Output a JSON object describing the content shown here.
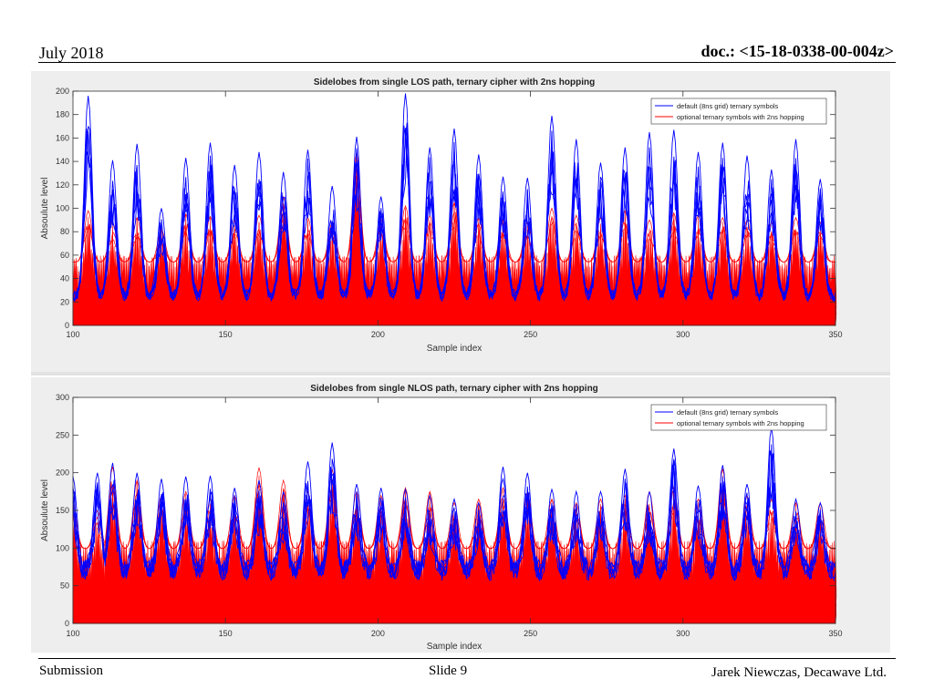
{
  "header": {
    "date": "July 2018",
    "doc": "doc.: <15-18-0338-00-004z>"
  },
  "footer": {
    "submission": "Submission",
    "slide": "Slide 9",
    "author": "Jarek Niewczas,  Decawave Ltd."
  },
  "colors": {
    "series_default": "#0000ff",
    "series_optional": "#ff0000",
    "panel_bg": "#eeeeee"
  },
  "chart_data": [
    {
      "type": "line",
      "title": "Sidelobes from single LOS path, ternary cipher with 2ns hopping",
      "xlabel": "Sample index",
      "ylabel": "Absoulute level",
      "xlim": [
        100,
        350
      ],
      "ylim": [
        0,
        200
      ],
      "xticks": [
        100,
        150,
        200,
        250,
        300,
        350
      ],
      "yticks": [
        0,
        20,
        40,
        60,
        80,
        100,
        120,
        140,
        160,
        180,
        200
      ],
      "grid": false,
      "legend_position": "top-right",
      "period": 8,
      "first_peak": 105,
      "series": [
        {
          "name": "default (8ns grid) ternary symbols",
          "color": "#0000ff",
          "peak_x": [
            105,
            113,
            121,
            129,
            137,
            145,
            153,
            161,
            169,
            177,
            185,
            193,
            201,
            209,
            217,
            225,
            233,
            241,
            249,
            257,
            265,
            273,
            281,
            289,
            297,
            305,
            313,
            321,
            329,
            337,
            345
          ],
          "peak_y": [
            196,
            141,
            155,
            100,
            143,
            156,
            137,
            148,
            131,
            150,
            119,
            161,
            110,
            198,
            152,
            168,
            146,
            127,
            126,
            179,
            159,
            139,
            152,
            165,
            167,
            148,
            156,
            145,
            133,
            159,
            125
          ],
          "trough_y": 25
        },
        {
          "name": "optional ternary symbols with 2ns hopping",
          "color": "#ff0000",
          "peak_y": [
            98,
            88,
            92,
            82,
            95,
            93,
            90,
            94,
            110,
            92,
            88,
            148,
            90,
            102,
            94,
            105,
            92,
            90,
            88,
            100,
            94,
            92,
            98,
            90,
            96,
            94,
            92,
            90,
            88,
            92,
            88
          ],
          "fill_to": 60
        }
      ]
    },
    {
      "type": "line",
      "title": "Sidelobes from single NLOS path, ternary cipher with 2ns hopping",
      "xlabel": "Sample index",
      "ylabel": "Absoulute level",
      "xlim": [
        100,
        350
      ],
      "ylim": [
        0,
        300
      ],
      "xticks": [
        100,
        150,
        200,
        250,
        300,
        350
      ],
      "yticks": [
        0,
        50,
        100,
        150,
        200,
        250,
        300
      ],
      "grid": false,
      "legend_position": "top-right",
      "period": 8,
      "first_peak": 100,
      "series": [
        {
          "name": "default (8ns grid) ternary symbols",
          "color": "#0000ff",
          "peak_x": [
            100,
            108,
            113,
            121,
            129,
            137,
            145,
            153,
            161,
            169,
            177,
            185,
            193,
            201,
            209,
            217,
            225,
            233,
            241,
            249,
            257,
            265,
            273,
            281,
            289,
            297,
            305,
            313,
            321,
            329,
            337,
            345
          ],
          "peak_y": [
            195,
            200,
            213,
            200,
            192,
            195,
            196,
            180,
            190,
            175,
            215,
            240,
            185,
            180,
            178,
            170,
            165,
            160,
            208,
            200,
            178,
            175,
            175,
            205,
            175,
            232,
            183,
            210,
            185,
            260,
            165,
            160
          ],
          "trough_y": 70
        },
        {
          "name": "optional ternary symbols with 2ns hopping",
          "color": "#ff0000",
          "peak_y": [
            160,
            150,
            208,
            190,
            170,
            175,
            165,
            170,
            207,
            190,
            175,
            205,
            175,
            170,
            180,
            175,
            160,
            165,
            180,
            175,
            165,
            160,
            165,
            170,
            175,
            180,
            165,
            205,
            170,
            165,
            160,
            160
          ],
          "fill_to": 110
        }
      ]
    }
  ]
}
